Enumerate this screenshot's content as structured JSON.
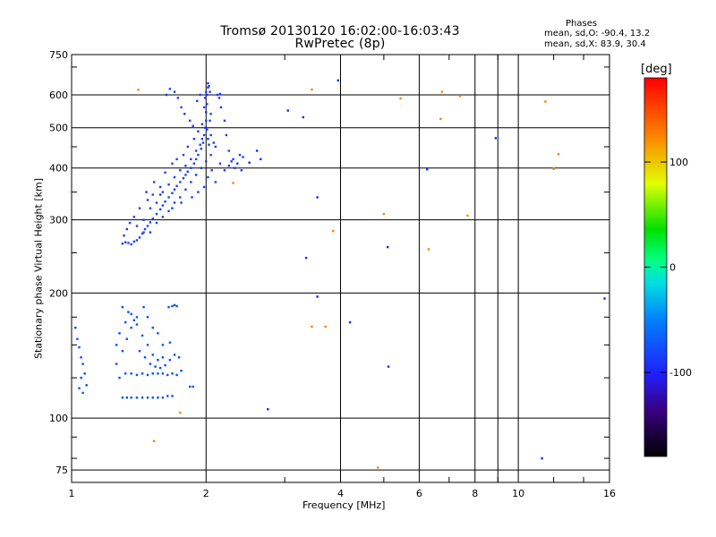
{
  "header": {
    "title_line1": "Tromsø 20130120 16:02:00-16:03:43",
    "title_line2": "RwPretec (8p)"
  },
  "phase_stats": {
    "heading": "Phases",
    "line_o": "mean, sd,O: -90.4, 13.2",
    "line_x": "mean, sd,X:  83.9, 30.4"
  },
  "chart_data": {
    "type": "scatter",
    "xlabel": "Frequency [MHz]",
    "ylabel": "Stationary phase Virtual Height [km]",
    "x_scale": "log",
    "y_scale": "log",
    "xlim": [
      1,
      16
    ],
    "ylim": [
      70,
      750
    ],
    "x_ticks": [
      1,
      2,
      4,
      6,
      8,
      10,
      16
    ],
    "x_tick_labels": [
      "1",
      "2",
      "4",
      "6",
      "8",
      "10",
      "16"
    ],
    "y_ticks": [
      75,
      100,
      200,
      300,
      400,
      500,
      600,
      750
    ],
    "y_tick_labels": [
      "75",
      "100",
      "200",
      "300",
      "400",
      "500",
      "600",
      "750"
    ],
    "grid": true,
    "colorbar": {
      "label": "[deg]",
      "range": [
        -180,
        180
      ],
      "ticks": [
        100,
        0,
        -100
      ],
      "tick_labels": [
        "100",
        "0",
        "-100"
      ]
    },
    "series": [
      {
        "role": "F-layer O-mode trace (dense cloud)",
        "color": "#1a3cff",
        "points": [
          [
            1.3,
            263
          ],
          [
            1.32,
            265
          ],
          [
            1.34,
            264
          ],
          [
            1.36,
            262
          ],
          [
            1.38,
            266
          ],
          [
            1.4,
            268
          ],
          [
            1.42,
            272
          ],
          [
            1.44,
            278
          ],
          [
            1.46,
            285
          ],
          [
            1.48,
            290
          ],
          [
            1.5,
            296
          ],
          [
            1.52,
            302
          ],
          [
            1.55,
            310
          ],
          [
            1.58,
            318
          ],
          [
            1.6,
            325
          ],
          [
            1.62,
            332
          ],
          [
            1.65,
            340
          ],
          [
            1.68,
            348
          ],
          [
            1.7,
            355
          ],
          [
            1.72,
            362
          ],
          [
            1.75,
            370
          ],
          [
            1.78,
            378
          ],
          [
            1.8,
            385
          ],
          [
            1.82,
            392
          ],
          [
            1.85,
            400
          ],
          [
            1.88,
            410
          ],
          [
            1.9,
            420
          ],
          [
            1.92,
            430
          ],
          [
            1.95,
            445
          ],
          [
            1.97,
            460
          ],
          [
            1.98,
            480
          ],
          [
            1.99,
            500
          ],
          [
            2.0,
            520
          ],
          [
            2.0,
            545
          ],
          [
            2.01,
            570
          ],
          [
            2.01,
            600
          ],
          [
            2.02,
            625
          ],
          [
            2.02,
            640
          ],
          [
            2.03,
            630
          ],
          [
            2.04,
            610
          ],
          [
            1.45,
            300
          ],
          [
            1.5,
            320
          ],
          [
            1.55,
            330
          ],
          [
            1.6,
            350
          ],
          [
            1.65,
            365
          ],
          [
            1.7,
            380
          ],
          [
            1.75,
            395
          ],
          [
            1.8,
            405
          ],
          [
            1.85,
            420
          ],
          [
            1.9,
            440
          ],
          [
            1.4,
            290
          ],
          [
            1.45,
            280
          ],
          [
            1.55,
            295
          ],
          [
            1.6,
            305
          ],
          [
            1.65,
            315
          ],
          [
            1.7,
            330
          ],
          [
            1.75,
            340
          ],
          [
            1.8,
            355
          ],
          [
            1.85,
            370
          ],
          [
            1.9,
            385
          ],
          [
            1.95,
            400
          ],
          [
            2.0,
            415
          ],
          [
            2.05,
            430
          ],
          [
            2.1,
            450
          ],
          [
            2.15,
            410
          ],
          [
            2.2,
            395
          ],
          [
            2.25,
            405
          ],
          [
            2.3,
            420
          ],
          [
            2.35,
            410
          ],
          [
            2.4,
            395
          ],
          [
            1.62,
            390
          ],
          [
            1.68,
            410
          ],
          [
            1.72,
            420
          ],
          [
            1.78,
            430
          ],
          [
            1.82,
            450
          ],
          [
            1.88,
            470
          ],
          [
            1.92,
            490
          ],
          [
            1.96,
            510
          ],
          [
            2.05,
            480
          ],
          [
            2.08,
            460
          ],
          [
            1.58,
            360
          ],
          [
            1.52,
            345
          ],
          [
            1.48,
            335
          ],
          [
            1.42,
            320
          ],
          [
            1.38,
            305
          ],
          [
            1.35,
            295
          ],
          [
            1.33,
            285
          ],
          [
            1.31,
            275
          ],
          [
            1.47,
            350
          ],
          [
            1.53,
            370
          ],
          [
            1.63,
            600
          ],
          [
            1.66,
            620
          ],
          [
            1.7,
            610
          ],
          [
            1.73,
            590
          ],
          [
            1.76,
            560
          ],
          [
            1.79,
            540
          ],
          [
            1.84,
            520
          ],
          [
            1.87,
            505
          ],
          [
            1.91,
            580
          ],
          [
            1.94,
            600
          ],
          [
            1.98,
            360
          ],
          [
            2.02,
            380
          ],
          [
            2.06,
            395
          ],
          [
            2.1,
            370
          ],
          [
            1.92,
            350
          ],
          [
            1.86,
            340
          ],
          [
            1.76,
            330
          ],
          [
            1.68,
            320
          ],
          [
            1.58,
            345
          ],
          [
            1.5,
            280
          ],
          [
            2.12,
            600
          ],
          [
            2.14,
            590
          ],
          [
            2.16,
            560
          ],
          [
            2.2,
            520
          ],
          [
            2.22,
            480
          ],
          [
            2.25,
            440
          ],
          [
            2.28,
            415
          ],
          [
            2.32,
            400
          ],
          [
            2.38,
            430
          ],
          [
            2.42,
            425
          ],
          [
            1.98,
            560
          ],
          [
            1.99,
            590
          ],
          [
            2.0,
            610
          ],
          [
            2.01,
            495
          ],
          [
            2.02,
            470
          ],
          [
            2.03,
            455
          ],
          [
            2.04,
            520
          ],
          [
            2.05,
            540
          ],
          [
            1.96,
            470
          ],
          [
            1.94,
            455
          ]
        ]
      },
      {
        "role": "E-layer / lower echoes",
        "color": "#1a3cff",
        "points": [
          [
            1.02,
            165
          ],
          [
            1.03,
            155
          ],
          [
            1.04,
            148
          ],
          [
            1.05,
            140
          ],
          [
            1.06,
            135
          ],
          [
            1.07,
            128
          ],
          [
            1.08,
            120
          ],
          [
            1.05,
            125
          ],
          [
            1.04,
            118
          ],
          [
            1.06,
            115
          ],
          [
            1.3,
            112
          ],
          [
            1.33,
            112
          ],
          [
            1.36,
            112
          ],
          [
            1.4,
            112
          ],
          [
            1.44,
            112
          ],
          [
            1.48,
            112
          ],
          [
            1.52,
            112
          ],
          [
            1.56,
            112
          ],
          [
            1.6,
            112
          ],
          [
            1.64,
            113
          ],
          [
            1.68,
            113
          ],
          [
            1.28,
            125
          ],
          [
            1.32,
            128
          ],
          [
            1.36,
            128
          ],
          [
            1.4,
            127
          ],
          [
            1.44,
            128
          ],
          [
            1.48,
            127
          ],
          [
            1.52,
            128
          ],
          [
            1.56,
            128
          ],
          [
            1.6,
            128
          ],
          [
            1.64,
            127
          ],
          [
            1.68,
            128
          ],
          [
            1.72,
            127
          ],
          [
            1.26,
            135
          ],
          [
            1.3,
            145
          ],
          [
            1.33,
            155
          ],
          [
            1.36,
            165
          ],
          [
            1.4,
            175
          ],
          [
            1.45,
            185
          ],
          [
            1.48,
            175
          ],
          [
            1.52,
            165
          ],
          [
            1.56,
            160
          ],
          [
            1.6,
            150
          ],
          [
            1.28,
            160
          ],
          [
            1.32,
            170
          ],
          [
            1.36,
            178
          ],
          [
            1.4,
            168
          ],
          [
            1.44,
            158
          ],
          [
            1.48,
            150
          ],
          [
            1.52,
            142
          ],
          [
            1.56,
            138
          ],
          [
            1.6,
            140
          ],
          [
            1.66,
            152
          ],
          [
            1.65,
            185
          ],
          [
            1.68,
            186
          ],
          [
            1.7,
            187
          ],
          [
            1.72,
            186
          ],
          [
            1.84,
            119
          ],
          [
            1.87,
            119
          ],
          [
            1.3,
            185
          ],
          [
            1.34,
            180
          ],
          [
            1.38,
            172
          ],
          [
            1.26,
            150
          ],
          [
            1.42,
            145
          ],
          [
            1.46,
            140
          ],
          [
            1.5,
            135
          ],
          [
            1.54,
            133
          ],
          [
            1.58,
            132
          ],
          [
            1.62,
            134
          ],
          [
            1.66,
            138
          ],
          [
            1.7,
            142
          ],
          [
            1.74,
            140
          ],
          [
            1.76,
            130
          ]
        ]
      },
      {
        "role": "Scattered isolated points",
        "color": "#ff8000",
        "points": [
          [
            1.41,
            617
          ],
          [
            3.45,
            618
          ],
          [
            5.45,
            588
          ],
          [
            6.75,
            610
          ],
          [
            7.4,
            596
          ],
          [
            11.5,
            578
          ],
          [
            12.3,
            432
          ],
          [
            3.85,
            282
          ],
          [
            6.3,
            255
          ],
          [
            3.45,
            166
          ],
          [
            3.7,
            166
          ],
          [
            5.0,
            310
          ],
          [
            1.75,
            103
          ],
          [
            1.53,
            88
          ],
          [
            4.85,
            76
          ],
          [
            2.3,
            368
          ],
          [
            12.0,
            398
          ],
          [
            6.7,
            525
          ],
          [
            7.7,
            307
          ]
        ]
      },
      {
        "role": "Scattered isolated points (blue/cyan)",
        "color": "#0030ff",
        "points": [
          [
            3.05,
            550
          ],
          [
            3.3,
            530
          ],
          [
            3.55,
            340
          ],
          [
            3.35,
            243
          ],
          [
            3.55,
            196
          ],
          [
            3.95,
            650
          ],
          [
            5.1,
            258
          ],
          [
            6.25,
            397
          ],
          [
            4.2,
            170
          ],
          [
            5.12,
            133
          ],
          [
            2.75,
            105
          ],
          [
            8.9,
            472
          ],
          [
            15.6,
            194
          ],
          [
            11.3,
            80
          ],
          [
            2.15,
            603
          ],
          [
            2.6,
            440
          ],
          [
            2.5,
            412
          ],
          [
            2.65,
            420
          ]
        ]
      }
    ]
  }
}
